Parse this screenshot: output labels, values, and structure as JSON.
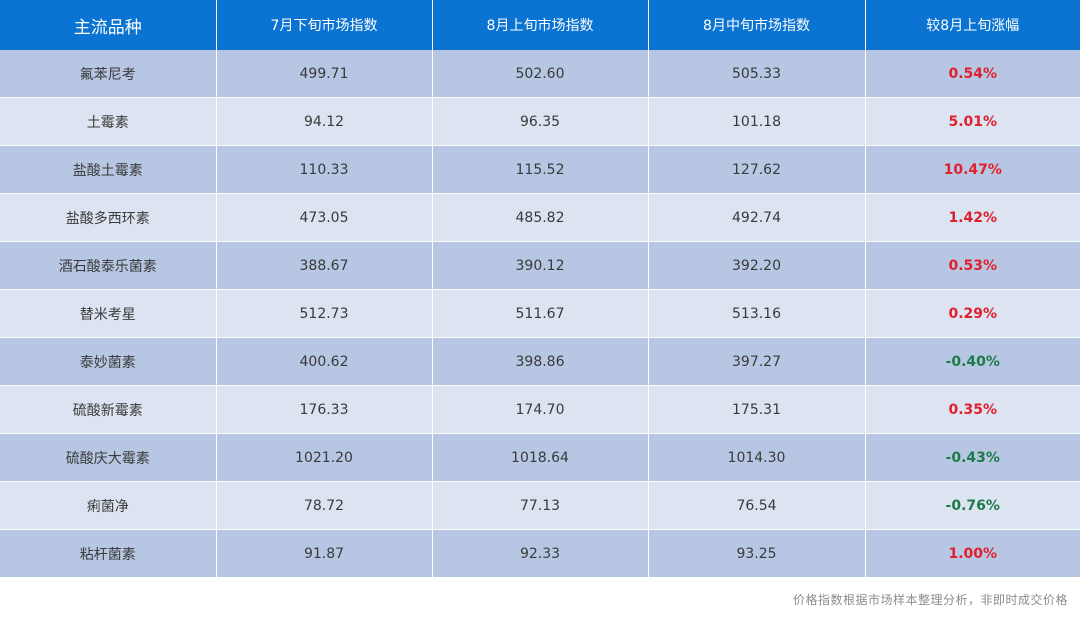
{
  "colors": {
    "header_bg": "#0b73d2",
    "row_odd_bg": "#b7c7e3",
    "row_even_bg": "#dde4f1",
    "positive": "#e0202c",
    "negative": "#1e7a4a"
  },
  "chart_data": {
    "type": "table",
    "columns": [
      "主流品种",
      "7月下旬市场指数",
      "8月上旬市场指数",
      "8月中旬市场指数",
      "较8月上旬涨幅"
    ],
    "rows": [
      [
        "氟苯尼考",
        "499.71",
        "502.60",
        "505.33",
        "0.54%"
      ],
      [
        "土霉素",
        "94.12",
        "96.35",
        "101.18",
        "5.01%"
      ],
      [
        "盐酸土霉素",
        "110.33",
        "115.52",
        "127.62",
        "10.47%"
      ],
      [
        "盐酸多西环素",
        "473.05",
        "485.82",
        "492.74",
        "1.42%"
      ],
      [
        "酒石酸泰乐菌素",
        "388.67",
        "390.12",
        "392.20",
        "0.53%"
      ],
      [
        "替米考星",
        "512.73",
        "511.67",
        "513.16",
        "0.29%"
      ],
      [
        "泰妙菌素",
        "400.62",
        "398.86",
        "397.27",
        "-0.40%"
      ],
      [
        "硫酸新霉素",
        "176.33",
        "174.70",
        "175.31",
        "0.35%"
      ],
      [
        "硫酸庆大霉素",
        "1021.20",
        "1018.64",
        "1014.30",
        "-0.43%"
      ],
      [
        "痢菌净",
        "78.72",
        "77.13",
        "76.54",
        "-0.76%"
      ],
      [
        "粘杆菌素",
        "91.87",
        "92.33",
        "93.25",
        "1.00%"
      ]
    ]
  },
  "footnote": "价格指数根据市场样本整理分析，非即时成交价格"
}
